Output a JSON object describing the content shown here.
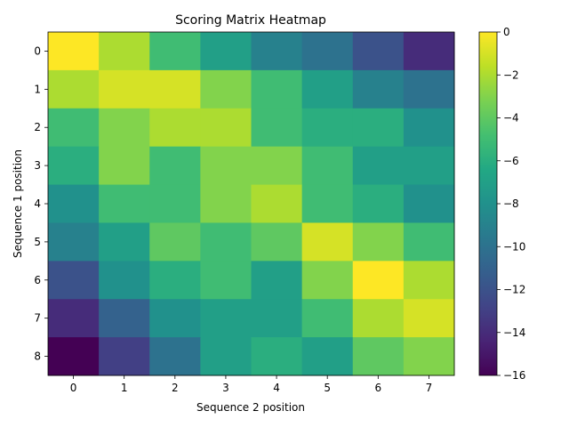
{
  "chart_data": {
    "type": "heatmap",
    "title": "Scoring Matrix Heatmap",
    "xlabel": "Sequence 2 position",
    "ylabel": "Sequence 1 position",
    "x_categories": [
      "0",
      "1",
      "2",
      "3",
      "4",
      "5",
      "6",
      "7"
    ],
    "y_categories": [
      "0",
      "1",
      "2",
      "3",
      "4",
      "5",
      "6",
      "7",
      "8"
    ],
    "values": [
      [
        0,
        -2,
        -5,
        -7,
        -9,
        -10,
        -12,
        -14
      ],
      [
        -2,
        -1,
        -1,
        -3,
        -5,
        -7,
        -9,
        -10
      ],
      [
        -5,
        -3,
        -2,
        -2,
        -5,
        -6,
        -6,
        -8
      ],
      [
        -6,
        -3,
        -5,
        -3,
        -3,
        -5,
        -7,
        -7
      ],
      [
        -8,
        -5,
        -5,
        -3,
        -2,
        -5,
        -6,
        -8
      ],
      [
        -9,
        -7,
        -4,
        -5,
        -4,
        -1,
        -3,
        -5
      ],
      [
        -12,
        -8,
        -6,
        -5,
        -7,
        -3,
        0,
        -2
      ],
      [
        -14,
        -11,
        -8,
        -7,
        -7,
        -5,
        -2,
        -1
      ],
      [
        -16,
        -13,
        -10,
        -7,
        -6,
        -7,
        -4,
        -3
      ]
    ],
    "colormap": "viridis",
    "vmin": -16,
    "vmax": 0,
    "colorbar_ticks": [
      "0",
      "−2",
      "−4",
      "−6",
      "−8",
      "−10",
      "−12",
      "−14",
      "−16"
    ],
    "colorbar_tick_values": [
      0,
      -2,
      -4,
      -6,
      -8,
      -10,
      -12,
      -14,
      -16
    ],
    "grid": false,
    "legend": "colorbar-right"
  }
}
